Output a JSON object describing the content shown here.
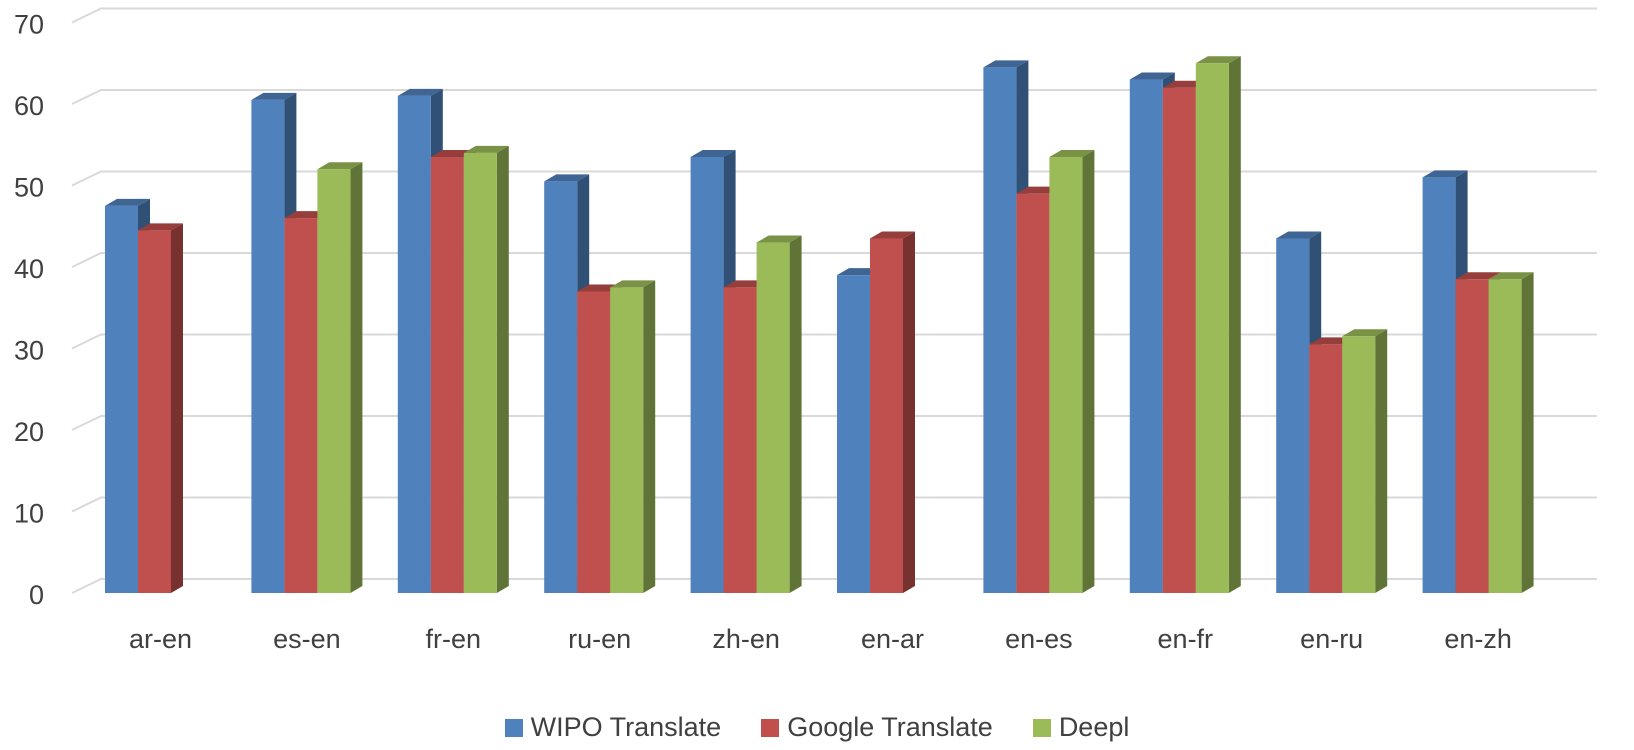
{
  "chart_data": {
    "type": "bar",
    "title": "",
    "xlabel": "",
    "ylabel": "",
    "ylim": [
      0,
      70
    ],
    "yticks": [
      0,
      10,
      20,
      30,
      40,
      50,
      60,
      70
    ],
    "grid": true,
    "legend_position": "bottom",
    "style": "3d-clustered-column",
    "categories": [
      "ar-en",
      "es-en",
      "fr-en",
      "ru-en",
      "zh-en",
      "en-ar",
      "en-es",
      "en-fr",
      "en-ru",
      "en-zh"
    ],
    "series": [
      {
        "name": "WIPO Translate",
        "color": "#4F81BD",
        "values": [
          47.5,
          60.5,
          61,
          50.5,
          53.5,
          39,
          64.5,
          63,
          43.5,
          51
        ]
      },
      {
        "name": "Google Translate",
        "color": "#C0504D",
        "values": [
          44.5,
          46,
          53.5,
          37,
          37.5,
          43.5,
          49,
          62,
          30.5,
          38.5
        ]
      },
      {
        "name": "Deepl",
        "color": "#9BBB59",
        "values": [
          null,
          52,
          54,
          37.5,
          43,
          null,
          53.5,
          65,
          31.5,
          38.5
        ]
      }
    ]
  }
}
